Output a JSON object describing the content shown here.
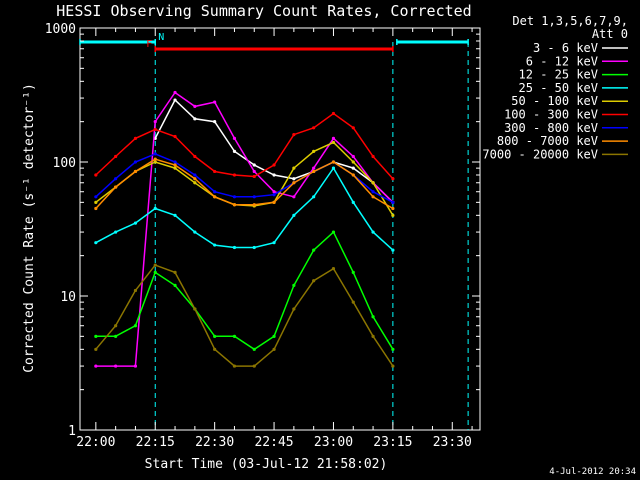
{
  "chart_data": {
    "type": "line",
    "title": "HESSI Observing Summary Count Rates, Corrected",
    "xlabel": "Start Time (03-Jul-12 21:58:02)",
    "ylabel": "Corrected Count Rate (s⁻¹ detector⁻¹)",
    "yscale": "log",
    "ylim": [
      1,
      1000
    ],
    "xlim": [
      "21:56",
      "23:37"
    ],
    "x_ticks": [
      "22:00",
      "22:15",
      "22:30",
      "22:45",
      "23:00",
      "23:15",
      "23:30"
    ],
    "y_ticks": [
      "1",
      "10",
      "100",
      "1000"
    ],
    "legend_title": [
      "Det 1,3,5,6,7,9,",
      "Att 0"
    ],
    "legend_position": "outside-right",
    "footer": "4-Jul-2012 20:34",
    "flags": [
      {
        "label": "N",
        "color": "#00ffff",
        "segments": [
          [
            "21:56",
            "22:15"
          ],
          [
            "23:16",
            "23:34"
          ]
        ]
      },
      {
        "label": "F",
        "color": "#ff0000",
        "segments": [
          [
            "22:15",
            "23:15"
          ]
        ]
      }
    ],
    "night_boundaries": [
      "22:15",
      "23:15",
      "23:34"
    ],
    "x": [
      "22:00",
      "22:05",
      "22:10",
      "22:15",
      "22:20",
      "22:25",
      "22:30",
      "22:35",
      "22:40",
      "22:45",
      "22:50",
      "22:55",
      "23:00",
      "23:05",
      "23:10",
      "23:15"
    ],
    "series": [
      {
        "name": "3 - 6 keV",
        "color": "#ffffff",
        "values": [
          0,
          0,
          0,
          150,
          290,
          210,
          200,
          120,
          95,
          80,
          75,
          85,
          100,
          90,
          70,
          50
        ]
      },
      {
        "name": "6 - 12 keV",
        "color": "#ff00ff",
        "values": [
          3,
          3,
          3,
          200,
          330,
          260,
          280,
          150,
          85,
          60,
          55,
          90,
          150,
          110,
          70,
          50
        ]
      },
      {
        "name": "12 - 25 keV",
        "color": "#00ff00",
        "values": [
          5,
          5,
          6,
          15,
          12,
          8,
          5,
          5,
          4,
          5,
          12,
          22,
          30,
          15,
          7,
          4
        ]
      },
      {
        "name": "25 - 50 keV",
        "color": "#00ffff",
        "values": [
          25,
          30,
          35,
          45,
          40,
          30,
          24,
          23,
          23,
          25,
          40,
          55,
          90,
          50,
          30,
          22
        ]
      },
      {
        "name": "50 - 100 keV",
        "color": "#ddcc00",
        "values": [
          50,
          65,
          85,
          100,
          90,
          70,
          55,
          48,
          47,
          50,
          90,
          120,
          140,
          100,
          70,
          40
        ]
      },
      {
        "name": "100 - 300 keV",
        "color": "#ff0000",
        "values": [
          80,
          110,
          150,
          175,
          155,
          110,
          85,
          80,
          78,
          95,
          160,
          180,
          230,
          180,
          110,
          75
        ]
      },
      {
        "name": "300 - 800 keV",
        "color": "#0000ff",
        "values": [
          55,
          75,
          100,
          115,
          100,
          80,
          60,
          55,
          55,
          57,
          70,
          85,
          100,
          80,
          60,
          50
        ]
      },
      {
        "name": "800 - 7000 keV",
        "color": "#ff8c00",
        "values": [
          45,
          65,
          85,
          105,
          95,
          75,
          55,
          48,
          48,
          50,
          70,
          85,
          100,
          80,
          55,
          45
        ]
      },
      {
        "name": "7000 - 20000 keV",
        "color": "#8b7500",
        "values": [
          4,
          6,
          11,
          17,
          15,
          8,
          4,
          3,
          3,
          4,
          8,
          13,
          16,
          9,
          5,
          3
        ]
      }
    ]
  }
}
